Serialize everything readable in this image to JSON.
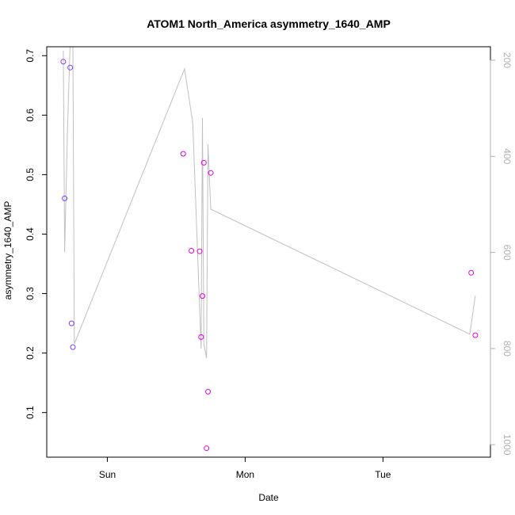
{
  "chart_data": {
    "type": "scatter",
    "title": "ATOM1 North_America asymmetry_1640_AMP",
    "xlabel": "Date",
    "ylabel": "asymmetry_1640_AMP",
    "x_ticks": [
      {
        "label": "Sun",
        "value": 0.0
      },
      {
        "label": "Mon",
        "value": 1.0
      },
      {
        "label": "Tue",
        "value": 2.0
      }
    ],
    "xlim": [
      -0.44,
      2.78
    ],
    "ylim": [
      0.025,
      0.715
    ],
    "y_ticks": [
      0.1,
      0.2,
      0.3,
      0.4,
      0.5,
      0.6,
      0.7
    ],
    "y2_ticks": [
      200,
      400,
      600,
      800,
      1000
    ],
    "y2lim": [
      1026,
      172
    ],
    "grid": false,
    "colors": {
      "points_early": "#7b3ff2",
      "points_late": "#e000e0",
      "line": "#c0c0c0"
    },
    "series": [
      {
        "values": [
          {
            "x": -0.32,
            "y": 0.69
          },
          {
            "x": -0.31,
            "y": 0.46
          },
          {
            "x": -0.27,
            "y": 0.68
          },
          {
            "x": -0.26,
            "y": 0.25
          },
          {
            "x": -0.25,
            "y": 0.21
          },
          {
            "x": 0.55,
            "y": 0.535
          },
          {
            "x": 0.61,
            "y": 0.372
          },
          {
            "x": 0.67,
            "y": 0.371
          },
          {
            "x": 0.68,
            "y": 0.227
          },
          {
            "x": 0.69,
            "y": 0.296
          },
          {
            "x": 0.7,
            "y": 0.52
          },
          {
            "x": 0.72,
            "y": 0.04
          },
          {
            "x": 0.73,
            "y": 0.135
          },
          {
            "x": 0.75,
            "y": 0.503
          },
          {
            "x": 2.64,
            "y": 0.335
          },
          {
            "x": 2.67,
            "y": 0.23
          }
        ]
      },
      {
        "axis": "right",
        "values": [
          {
            "x": -0.32,
            "y": 180
          },
          {
            "x": -0.31,
            "y": 600
          },
          {
            "x": -0.29,
            "y": 350
          },
          {
            "x": -0.27,
            "y": 160
          },
          {
            "x": -0.25,
            "y": 170
          },
          {
            "x": -0.24,
            "y": 790
          },
          {
            "x": 0.56,
            "y": 218
          },
          {
            "x": 0.62,
            "y": 330
          },
          {
            "x": 0.68,
            "y": 800
          },
          {
            "x": 0.69,
            "y": 320
          },
          {
            "x": 0.7,
            "y": 790
          },
          {
            "x": 0.72,
            "y": 820
          },
          {
            "x": 0.73,
            "y": 375
          },
          {
            "x": 0.75,
            "y": 510
          },
          {
            "x": 2.63,
            "y": 770
          },
          {
            "x": 2.67,
            "y": 690
          }
        ]
      }
    ]
  }
}
